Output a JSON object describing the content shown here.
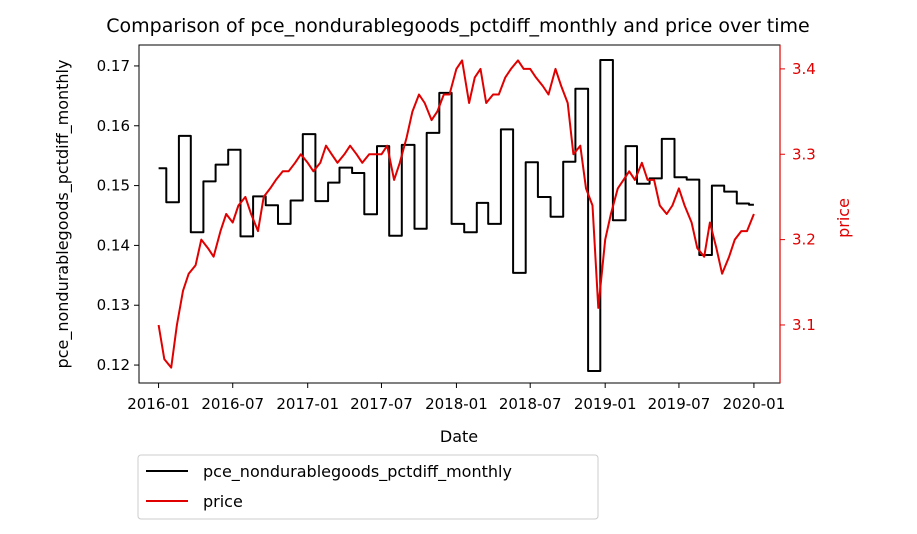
{
  "chart_data": {
    "type": "line",
    "title": "Comparison of pce_nondurablegoods_pctdiff_monthly and price over time",
    "xlabel": "Date",
    "ylabel_left": "pce_nondurablegoods_pctdiff_monthly",
    "ylabel_right": "price",
    "x_tick_labels": [
      "2016-01",
      "2016-07",
      "2017-01",
      "2017-07",
      "2018-01",
      "2018-07",
      "2019-01",
      "2019-07",
      "2020-01"
    ],
    "y_left_ticks": [
      "0.12",
      "0.13",
      "0.14",
      "0.15",
      "0.16",
      "0.17"
    ],
    "y_left_range": [
      0.117,
      0.1735
    ],
    "y_right_ticks": [
      "3.1",
      "3.2",
      "3.3",
      "3.4"
    ],
    "y_right_range": [
      3.032,
      3.428
    ],
    "x_range": [
      "2015-11-14",
      "2020-03-05"
    ],
    "legend_position": "below-left",
    "grid": false,
    "colors": {
      "left_series": "#000000",
      "right_series": "#e00000",
      "right_axis": "#e00000"
    },
    "series": [
      {
        "name": "pce_nondurablegoods_pctdiff_monthly",
        "axis": "left",
        "color": "#000000",
        "step": true,
        "x": [
          "2016-01-01",
          "2016-01-20",
          "2016-02-20",
          "2016-03-20",
          "2016-04-20",
          "2016-05-20",
          "2016-06-20",
          "2016-07-20",
          "2016-08-20",
          "2016-09-20",
          "2016-10-20",
          "2016-11-20",
          "2016-12-20",
          "2017-01-20",
          "2017-02-20",
          "2017-03-20",
          "2017-04-20",
          "2017-05-20",
          "2017-06-20",
          "2017-07-20",
          "2017-08-20",
          "2017-09-20",
          "2017-10-20",
          "2017-11-20",
          "2017-12-20",
          "2018-01-20",
          "2018-02-20",
          "2018-03-20",
          "2018-04-20",
          "2018-05-20",
          "2018-06-20",
          "2018-07-20",
          "2018-08-20",
          "2018-09-20",
          "2018-10-20",
          "2018-11-20",
          "2018-12-20",
          "2019-01-20",
          "2019-02-20",
          "2019-03-20",
          "2019-04-20",
          "2019-05-20",
          "2019-06-20",
          "2019-07-20",
          "2019-08-20",
          "2019-09-20",
          "2019-10-20",
          "2019-11-20",
          "2019-12-20",
          "2020-01-01"
        ],
        "values": [
          0.1529,
          0.1472,
          0.1583,
          0.1422,
          0.1507,
          0.1535,
          0.156,
          0.1415,
          0.1482,
          0.1467,
          0.1436,
          0.1475,
          0.1586,
          0.1474,
          0.1505,
          0.153,
          0.1521,
          0.1452,
          0.1566,
          0.1416,
          0.1568,
          0.1428,
          0.1588,
          0.1655,
          0.1436,
          0.1422,
          0.1471,
          0.1436,
          0.1594,
          0.1354,
          0.1539,
          0.1481,
          0.1448,
          0.154,
          0.1662,
          0.119,
          0.171,
          0.1442,
          0.1566,
          0.1503,
          0.1512,
          0.1578,
          0.1514,
          0.151,
          0.1384,
          0.15,
          0.149,
          0.147,
          0.1468,
          0.1468
        ]
      },
      {
        "name": "price",
        "axis": "right",
        "color": "#e00000",
        "step": false,
        "x": [
          "2016-01-01",
          "2016-01-15",
          "2016-02-01",
          "2016-02-15",
          "2016-03-01",
          "2016-03-15",
          "2016-04-01",
          "2016-04-15",
          "2016-05-01",
          "2016-05-15",
          "2016-06-01",
          "2016-06-15",
          "2016-07-01",
          "2016-07-15",
          "2016-08-01",
          "2016-08-15",
          "2016-09-01",
          "2016-09-15",
          "2016-10-01",
          "2016-10-15",
          "2016-11-01",
          "2016-11-15",
          "2016-12-01",
          "2016-12-15",
          "2017-01-01",
          "2017-01-15",
          "2017-02-01",
          "2017-02-15",
          "2017-03-01",
          "2017-03-15",
          "2017-04-01",
          "2017-04-15",
          "2017-05-01",
          "2017-05-15",
          "2017-06-01",
          "2017-06-15",
          "2017-07-01",
          "2017-07-15",
          "2017-08-01",
          "2017-08-15",
          "2017-09-01",
          "2017-09-15",
          "2017-10-01",
          "2017-10-15",
          "2017-11-01",
          "2017-11-15",
          "2017-12-01",
          "2017-12-15",
          "2018-01-01",
          "2018-01-15",
          "2018-02-01",
          "2018-02-15",
          "2018-03-01",
          "2018-03-15",
          "2018-04-01",
          "2018-04-15",
          "2018-05-01",
          "2018-05-15",
          "2018-06-01",
          "2018-06-15",
          "2018-07-01",
          "2018-07-15",
          "2018-08-01",
          "2018-08-15",
          "2018-09-01",
          "2018-09-15",
          "2018-10-01",
          "2018-10-15",
          "2018-11-01",
          "2018-11-15",
          "2018-12-01",
          "2018-12-15",
          "2019-01-01",
          "2019-01-15",
          "2019-02-01",
          "2019-02-15",
          "2019-03-01",
          "2019-03-15",
          "2019-04-01",
          "2019-04-15",
          "2019-05-01",
          "2019-05-15",
          "2019-06-01",
          "2019-06-15",
          "2019-07-01",
          "2019-07-15",
          "2019-08-01",
          "2019-08-15",
          "2019-09-01",
          "2019-09-15",
          "2019-10-01",
          "2019-10-15",
          "2019-11-01",
          "2019-11-15",
          "2019-12-01",
          "2019-12-15",
          "2020-01-01"
        ],
        "values": [
          3.1,
          3.06,
          3.05,
          3.1,
          3.14,
          3.16,
          3.17,
          3.2,
          3.19,
          3.18,
          3.21,
          3.23,
          3.22,
          3.24,
          3.25,
          3.23,
          3.21,
          3.25,
          3.26,
          3.27,
          3.28,
          3.28,
          3.29,
          3.3,
          3.29,
          3.28,
          3.29,
          3.31,
          3.3,
          3.29,
          3.3,
          3.31,
          3.3,
          3.29,
          3.3,
          3.3,
          3.3,
          3.31,
          3.27,
          3.29,
          3.32,
          3.35,
          3.37,
          3.36,
          3.34,
          3.35,
          3.37,
          3.37,
          3.4,
          3.41,
          3.36,
          3.39,
          3.4,
          3.36,
          3.37,
          3.37,
          3.39,
          3.4,
          3.41,
          3.4,
          3.4,
          3.39,
          3.38,
          3.37,
          3.4,
          3.38,
          3.36,
          3.3,
          3.31,
          3.26,
          3.24,
          3.12,
          3.2,
          3.23,
          3.26,
          3.27,
          3.28,
          3.27,
          3.29,
          3.27,
          3.27,
          3.24,
          3.23,
          3.24,
          3.26,
          3.24,
          3.22,
          3.19,
          3.18,
          3.22,
          3.19,
          3.16,
          3.18,
          3.2,
          3.21,
          3.21,
          3.23
        ]
      }
    ]
  }
}
